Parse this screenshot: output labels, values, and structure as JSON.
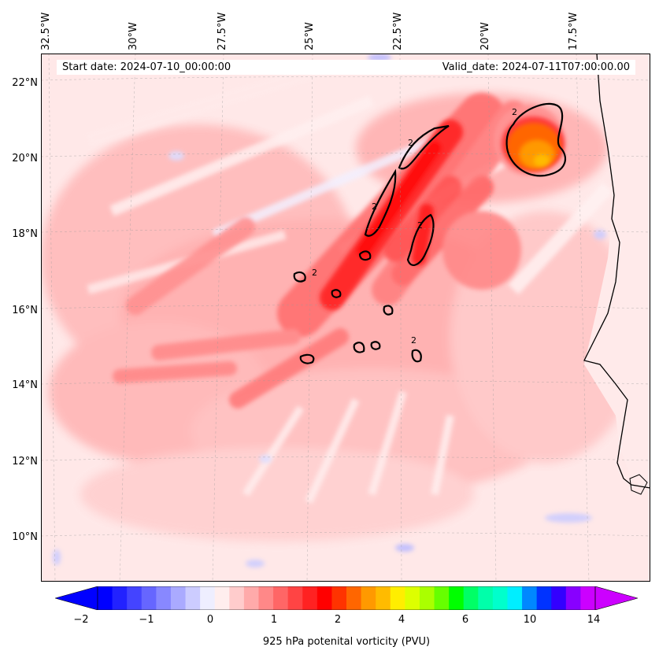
{
  "header": {
    "start_label": "Start date: 2024-07-10_00:00:00",
    "valid_label": "Valid_date: 2024-07-11T07:00:00.00"
  },
  "axes": {
    "lon_ticks": [
      "32.5°W",
      "30°W",
      "27.5°W",
      "25°W",
      "22.5°W",
      "20°W",
      "17.5°W"
    ],
    "lat_ticks": [
      "22°N",
      "20°N",
      "18°N",
      "16°N",
      "14°N",
      "12°N",
      "10°N"
    ]
  },
  "colorbar": {
    "label": "925 hPa potenital vorticity (PVU)",
    "ticks": [
      "−2",
      "−1",
      "0",
      "1",
      "2",
      "4",
      "6",
      "10",
      "14"
    ],
    "colors": [
      "#0000ff",
      "#2222ff",
      "#4444ff",
      "#6666ff",
      "#8888ff",
      "#aaaaff",
      "#ccccff",
      "#eeeeff",
      "#ffeeee",
      "#ffcccc",
      "#ffaaaa",
      "#ff8888",
      "#ff6666",
      "#ff4444",
      "#ff2222",
      "#ff0000",
      "#ff3300",
      "#ff6600",
      "#ff9900",
      "#ffbb00",
      "#ffee00",
      "#ddff00",
      "#aaff00",
      "#66ff00",
      "#00ff00",
      "#00ff66",
      "#00ffaa",
      "#00ffcc",
      "#00eeff",
      "#0088ff",
      "#0033ff",
      "#3300ff",
      "#8800ff",
      "#cc00ff"
    ],
    "extend_left": "#0000ff",
    "extend_right": "#cc00ff"
  },
  "map": {
    "background": "#ffe8e8",
    "contour_color": "#000000",
    "contour_label": "2"
  }
}
